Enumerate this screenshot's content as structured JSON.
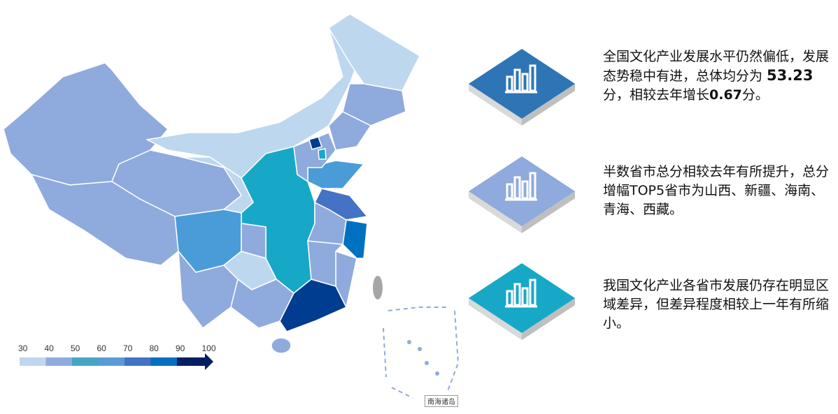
{
  "legend": {
    "ticks": [
      "30",
      "40",
      "50",
      "60",
      "70",
      "80",
      "90",
      "100"
    ],
    "colors": [
      "#bdd7ee",
      "#8faadc",
      "#45a6c4",
      "#5b9bd5",
      "#4472c4",
      "#0070c0",
      "#002060"
    ]
  },
  "map": {
    "inset_label": "南海诸岛",
    "colors": {
      "light": "#bdd7ee",
      "mid": "#8faadc",
      "teal": "#17a8c8",
      "blue": "#4a9cd8",
      "royal": "#4472c4",
      "strong": "#0070c0",
      "dark": "#003c8f",
      "gray": "#a6a6a6"
    }
  },
  "cards": [
    {
      "icon": "bar-chart-icon",
      "color": "#2e75b6",
      "text_pre": "全国文化产业发展水平仍然偏低，发展态势稳中有进，总体均分为 ",
      "bold1": "53.23",
      "text_mid": "分，相较去年增长",
      "bold2": "0.67",
      "text_post": "分。"
    },
    {
      "icon": "bar-chart-icon",
      "color": "#8faadc",
      "text": "半数省市总分相较去年有所提升，总分增幅TOP5省市为山西、新疆、海南、青海、西藏。"
    },
    {
      "icon": "bar-chart-icon",
      "color": "#17a8c8",
      "text": "我国文化产业各省市发展仍存在明显区域差异，但差异程度相较上一年有所缩小。"
    }
  ]
}
